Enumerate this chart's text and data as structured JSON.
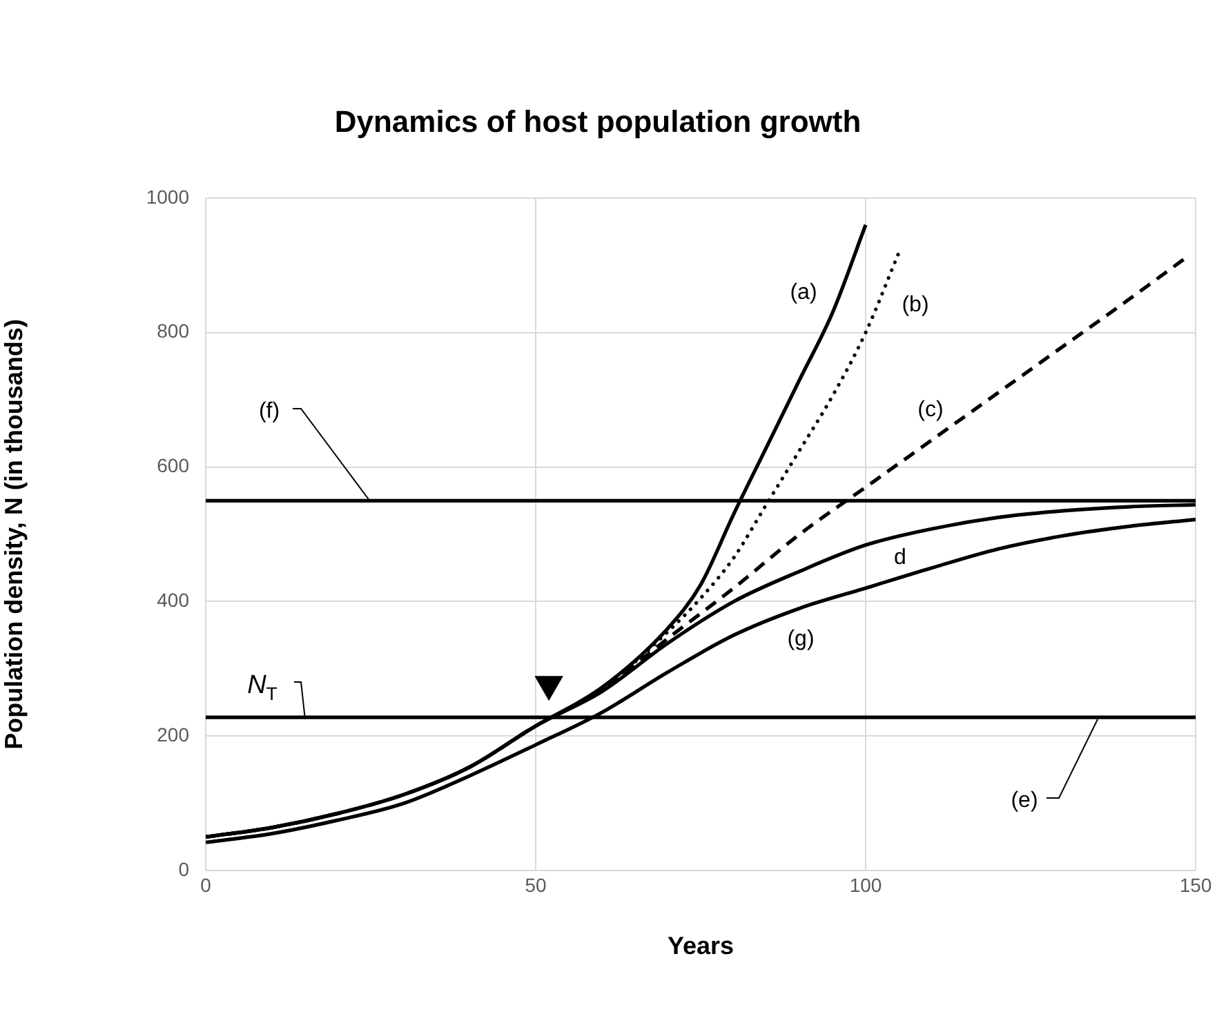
{
  "chart_data": {
    "type": "line",
    "title": "Dynamics of host population growth",
    "xlabel": "Years",
    "ylabel": "Population density, N (in thousands)",
    "xlim": [
      0,
      150
    ],
    "xticks": [
      0,
      50,
      100,
      150
    ],
    "ylim": [
      0,
      1000
    ],
    "yticks": [
      0,
      200,
      400,
      600,
      800,
      1000
    ],
    "grid": true,
    "legend": false,
    "marker": "none",
    "series": [
      {
        "name": "(a)",
        "color": "#000000",
        "line_style": "solid",
        "x": [
          0,
          10,
          20,
          30,
          40,
          50,
          60,
          70,
          75,
          80,
          85,
          90,
          95,
          100
        ],
        "values": [
          50,
          64,
          85,
          113,
          154,
          215,
          272,
          360,
          425,
          530,
          630,
          730,
          830,
          960
        ]
      },
      {
        "name": "(b)",
        "color": "#000000",
        "line_style": "dotted",
        "x": [
          0,
          10,
          20,
          30,
          40,
          50,
          60,
          70,
          75,
          80,
          85,
          90,
          95,
          100,
          105
        ],
        "values": [
          50,
          64,
          85,
          113,
          154,
          215,
          270,
          355,
          405,
          465,
          545,
          625,
          706,
          800,
          918
        ]
      },
      {
        "name": "(c)",
        "color": "#000000",
        "line_style": "dashed",
        "x": [
          0,
          10,
          20,
          30,
          40,
          50,
          60,
          70,
          80,
          90,
          100,
          110,
          120,
          130,
          140,
          148.5
        ],
        "values": [
          50,
          64,
          85,
          113,
          154,
          215,
          268,
          345,
          420,
          500,
          570,
          640,
          710,
          780,
          850,
          911
        ]
      },
      {
        "name": "d",
        "color": "#000000",
        "line_style": "solid",
        "x": [
          0,
          10,
          20,
          30,
          40,
          50,
          60,
          70,
          80,
          90,
          100,
          110,
          120,
          130,
          140,
          150
        ],
        "values": [
          50,
          64,
          85,
          113,
          154,
          215,
          266,
          338,
          400,
          445,
          484,
          508,
          525,
          535,
          541,
          544
        ]
      },
      {
        "name": "(g)",
        "color": "#000000",
        "line_style": "solid",
        "x": [
          0,
          10,
          20,
          30,
          40,
          50,
          60,
          70,
          80,
          90,
          100,
          110,
          120,
          130,
          140,
          150
        ],
        "values": [
          42,
          55,
          75,
          100,
          141,
          187,
          235,
          295,
          350,
          390,
          420,
          450,
          478,
          498,
          512,
          522
        ]
      },
      {
        "type": "scatter",
        "color": "#000000",
        "marker": "triangle",
        "x": [
          52
        ],
        "values": [
          277
        ]
      }
    ],
    "ref_lines": [
      {
        "axis": "y",
        "value": 550,
        "label": "(f)",
        "color": "#000000"
      },
      {
        "axis": "y",
        "value": 228,
        "label": "(e)",
        "color": "#000000"
      }
    ],
    "annotations": [
      {
        "text": "N$_{T}$",
        "y": 228
      }
    ]
  }
}
